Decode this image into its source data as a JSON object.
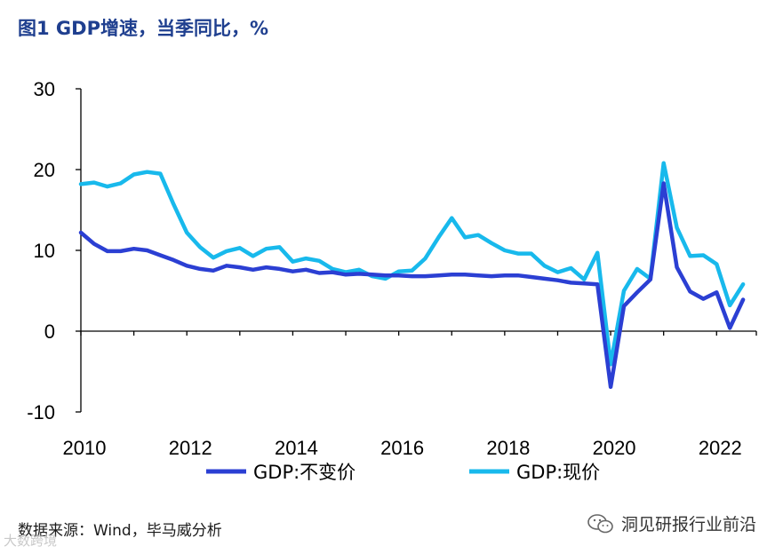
{
  "title": "图1  GDP增速，当季同比，%",
  "source": "数据来源：Wind，毕马威分析",
  "watermark_left": "大数跨境",
  "watermark_right": "洞见研报行业前沿",
  "colors": {
    "title": "#1f3f8f",
    "series_real": "#2b3fd3",
    "series_nominal": "#18b9ec",
    "axis": "#000000"
  },
  "chart_data": {
    "type": "line",
    "title": "GDP增速，当季同比，%",
    "xlabel": "",
    "ylabel": "",
    "ylim": [
      -10,
      30
    ],
    "yticks": [
      30,
      20,
      10,
      0,
      -10
    ],
    "xlim": [
      2010,
      2022.75
    ],
    "xticks": [
      "2010",
      "2012",
      "2014",
      "2016",
      "2018",
      "2020",
      "2022"
    ],
    "x": [
      2010.0,
      2010.25,
      2010.5,
      2010.75,
      2011.0,
      2011.25,
      2011.5,
      2011.75,
      2012.0,
      2012.25,
      2012.5,
      2012.75,
      2013.0,
      2013.25,
      2013.5,
      2013.75,
      2014.0,
      2014.25,
      2014.5,
      2014.75,
      2015.0,
      2015.25,
      2015.5,
      2015.75,
      2016.0,
      2016.25,
      2016.5,
      2016.75,
      2017.0,
      2017.25,
      2017.5,
      2017.75,
      2018.0,
      2018.25,
      2018.5,
      2018.75,
      2019.0,
      2019.25,
      2019.5,
      2019.75,
      2020.0,
      2020.25,
      2020.5,
      2020.75,
      2021.0,
      2021.25,
      2021.5,
      2021.75,
      2022.0,
      2022.25,
      2022.5
    ],
    "series": [
      {
        "name": "GDP:不变价",
        "color": "#2b3fd3",
        "values": [
          12.2,
          10.8,
          9.9,
          9.9,
          10.2,
          10.0,
          9.4,
          8.8,
          8.1,
          7.7,
          7.5,
          8.1,
          7.9,
          7.6,
          7.9,
          7.7,
          7.4,
          7.6,
          7.2,
          7.3,
          7.0,
          7.1,
          7.0,
          6.9,
          6.9,
          6.8,
          6.8,
          6.9,
          7.0,
          7.0,
          6.9,
          6.8,
          6.9,
          6.9,
          6.7,
          6.5,
          6.3,
          6.0,
          5.9,
          5.8,
          -6.9,
          3.1,
          4.8,
          6.4,
          18.3,
          7.9,
          4.9,
          4.0,
          4.8,
          0.4,
          3.9
        ]
      },
      {
        "name": "GDP:现价",
        "color": "#18b9ec",
        "values": [
          18.2,
          18.4,
          17.9,
          18.3,
          19.4,
          19.7,
          19.5,
          15.7,
          12.2,
          10.4,
          9.1,
          9.9,
          10.3,
          9.3,
          10.2,
          10.4,
          8.6,
          9.0,
          8.7,
          7.7,
          7.3,
          7.6,
          6.8,
          6.5,
          7.4,
          7.5,
          9.0,
          11.6,
          14.0,
          11.6,
          11.9,
          10.9,
          10.0,
          9.6,
          9.6,
          8.1,
          7.3,
          7.8,
          6.4,
          9.7,
          -4.1,
          5.0,
          7.7,
          6.5,
          20.8,
          12.8,
          9.3,
          9.4,
          8.3,
          3.2,
          5.8
        ]
      }
    ],
    "legend": [
      "GDP:不变价",
      "GDP:现价"
    ],
    "legend_position": "bottom-center"
  }
}
